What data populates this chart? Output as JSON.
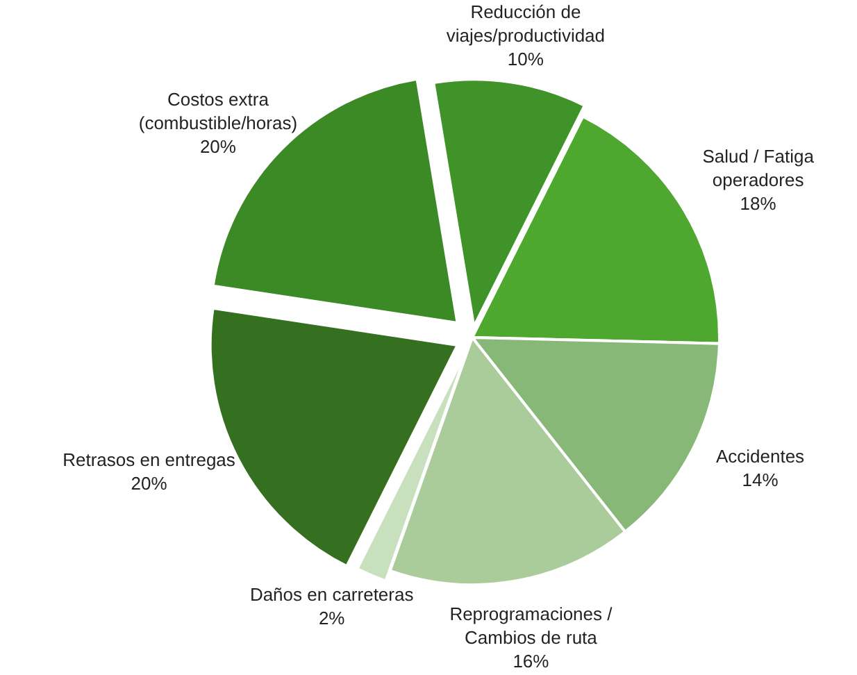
{
  "chart_data": {
    "type": "pie",
    "categories": [
      "Reducción de viajes/productividad",
      "Salud / Fatiga operadores",
      "Accidentes",
      "Reprogramaciones / Cambios de ruta",
      "Daños en carreteras",
      "Retrasos en entregas",
      "Costos extra (combustible/horas)"
    ],
    "values": [
      10,
      18,
      14,
      16,
      2,
      20,
      20
    ],
    "colors": [
      "#3f9328",
      "#4ea830",
      "#88b878",
      "#a9cc9a",
      "#c8e0bd",
      "#357020",
      "#3c8a26"
    ],
    "value_labels": [
      "10%",
      "18%",
      "14%",
      "16%",
      "2%",
      "20%",
      "20%"
    ]
  }
}
